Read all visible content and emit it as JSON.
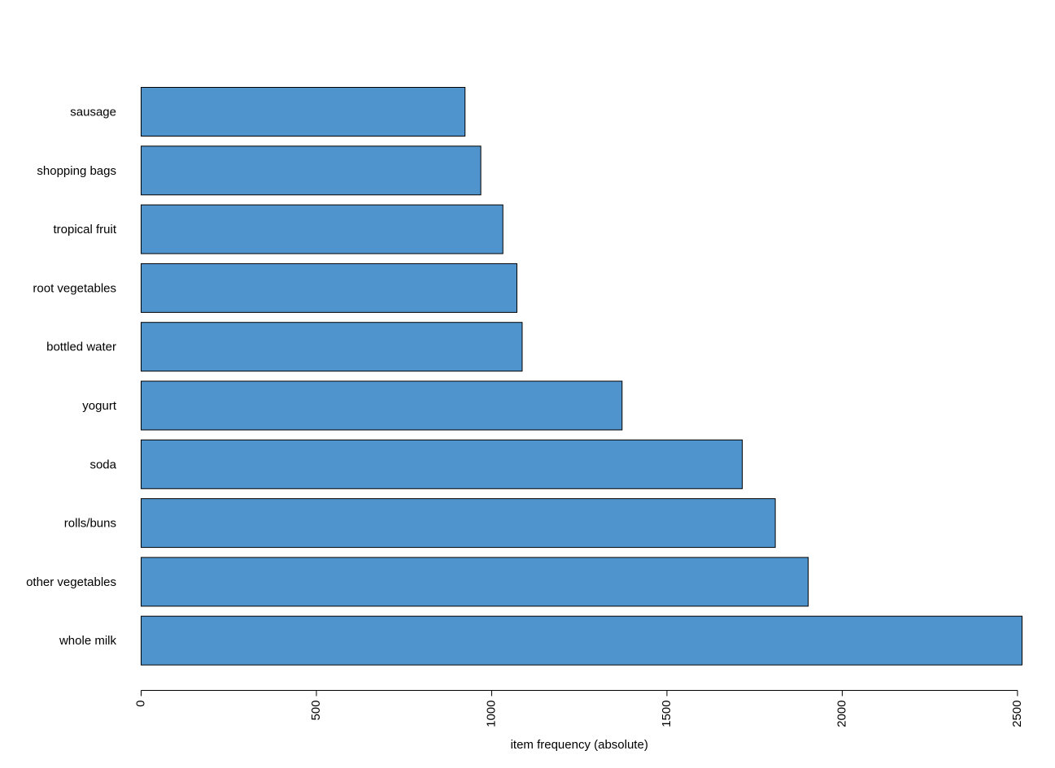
{
  "chart_data": {
    "type": "bar",
    "orientation": "horizontal",
    "categories": [
      "whole milk",
      "other vegetables",
      "rolls/buns",
      "soda",
      "yogurt",
      "bottled water",
      "root vegetables",
      "tropical fruit",
      "shopping bags",
      "sausage"
    ],
    "values": [
      2513,
      1903,
      1809,
      1715,
      1372,
      1087,
      1072,
      1032,
      969,
      924
    ],
    "title": "",
    "xlabel": "item frequency (absolute)",
    "ylabel": "",
    "xlim": [
      0,
      2513
    ],
    "xticks": [
      0,
      500,
      1000,
      1500,
      2000,
      2500
    ],
    "grid": false,
    "bar_color": "#4f94cd",
    "bar_edge_color": "#000000"
  }
}
